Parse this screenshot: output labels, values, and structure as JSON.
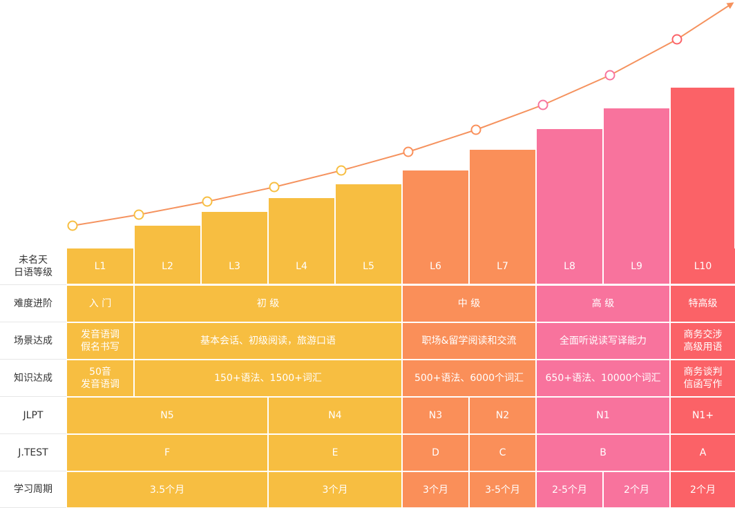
{
  "row_labels": [
    "未名天\n日语等级",
    "难度进阶",
    "场景达成",
    "知识达成",
    "JLPT",
    "J.TEST",
    "学习周期"
  ],
  "colors": {
    "yellow": "#f7be41",
    "orange": "#fa8f59",
    "pink": "#f8739d",
    "red": "#fb6267",
    "curve": "#f5925e"
  },
  "levels": [
    "L1",
    "L2",
    "L3",
    "L4",
    "L5",
    "L6",
    "L7",
    "L8",
    "L9",
    "L10"
  ],
  "level_groups": [
    "yellow",
    "yellow",
    "yellow",
    "yellow",
    "yellow",
    "orange",
    "orange",
    "pink",
    "pink",
    "red"
  ],
  "rows": [
    [
      {
        "text": "入 门",
        "span": 1
      },
      {
        "text": "初 级",
        "span": 4
      },
      {
        "text": "中 级",
        "span": 2
      },
      {
        "text": "高 级",
        "span": 2
      },
      {
        "text": "特高级",
        "span": 1
      }
    ],
    [
      {
        "text": "发音语调\n假名书写",
        "span": 1
      },
      {
        "text": "基本会话、初级阅读，旅游口语",
        "span": 4
      },
      {
        "text": "职场&留学阅读和交流",
        "span": 2
      },
      {
        "text": "全面听说读写译能力",
        "span": 2
      },
      {
        "text": "商务交涉\n高级用语",
        "span": 1
      }
    ],
    [
      {
        "text": "50音\n发音语调",
        "span": 1
      },
      {
        "text": "150+语法、1500+词汇",
        "span": 4
      },
      {
        "text": "500+语法、6000个词汇",
        "span": 2
      },
      {
        "text": "650+语法、10000个词汇",
        "span": 2
      },
      {
        "text": "商务谈判\n信函写作",
        "span": 1
      }
    ],
    [
      {
        "text": "N5",
        "span": 3
      },
      {
        "text": "N4",
        "span": 2
      },
      {
        "text": "N3",
        "span": 1
      },
      {
        "text": "N2",
        "span": 1
      },
      {
        "text": "N1",
        "span": 2
      },
      {
        "text": "N1+",
        "span": 1
      }
    ],
    [
      {
        "text": "F",
        "span": 3
      },
      {
        "text": "E",
        "span": 2
      },
      {
        "text": "D",
        "span": 1
      },
      {
        "text": "C",
        "span": 1
      },
      {
        "text": "B",
        "span": 2
      },
      {
        "text": "A",
        "span": 1
      }
    ],
    [
      {
        "text": "3.5个月",
        "span": 3
      },
      {
        "text": "3个月",
        "span": 2
      },
      {
        "text": "3个月",
        "span": 1
      },
      {
        "text": "3-5个月",
        "span": 1
      },
      {
        "text": "2-5个月",
        "span": 1
      },
      {
        "text": "2个月",
        "span": 1
      },
      {
        "text": "2个月",
        "span": 1
      }
    ]
  ]
}
